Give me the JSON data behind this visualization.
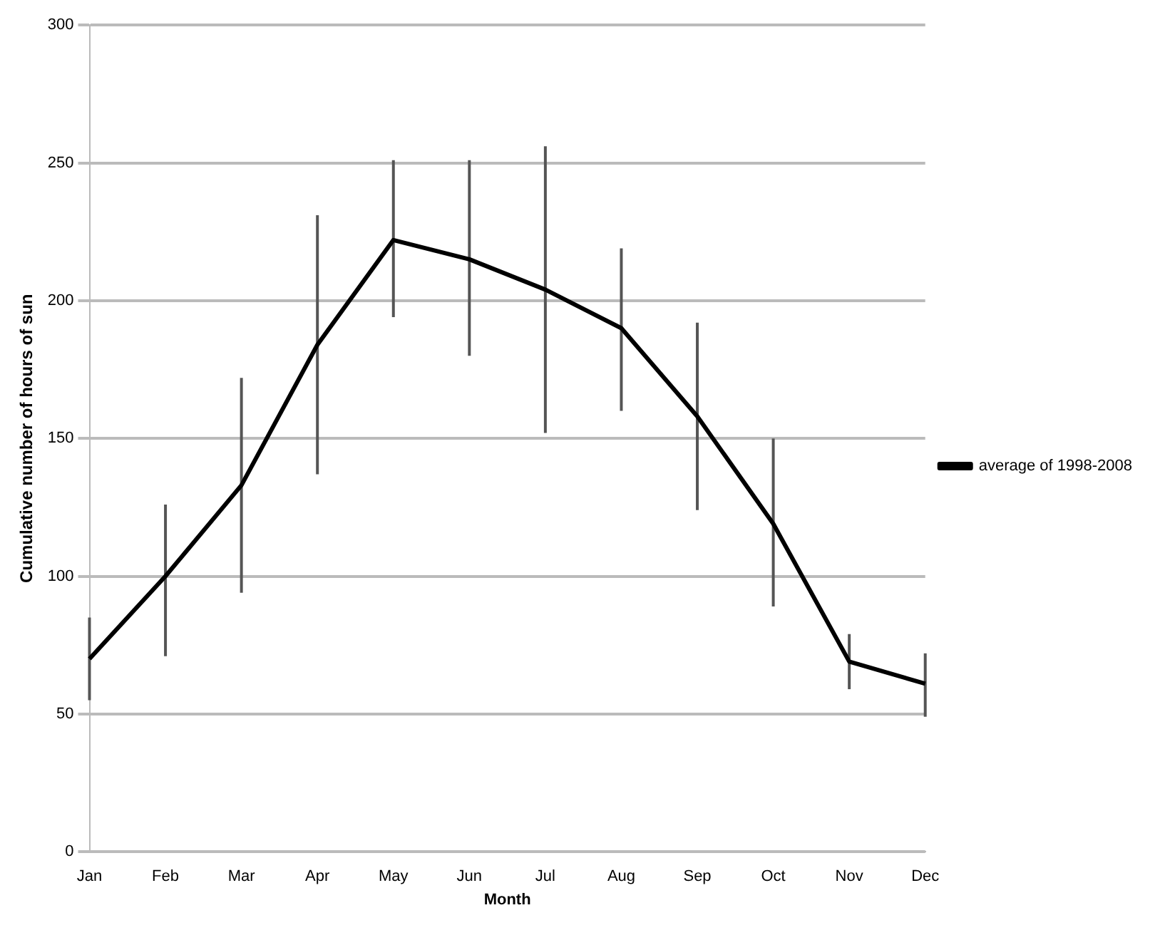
{
  "chart_data": {
    "type": "line",
    "xlabel": "Month",
    "ylabel": "Cumulative number of hours of sun",
    "categories": [
      "Jan",
      "Feb",
      "Mar",
      "Apr",
      "May",
      "Jun",
      "Jul",
      "Aug",
      "Sep",
      "Oct",
      "Nov",
      "Dec"
    ],
    "series": [
      {
        "name": "average of 1998-2008",
        "color": "#000000",
        "values": [
          70,
          100,
          133,
          184,
          222,
          215,
          204,
          190,
          158,
          119,
          69,
          61
        ],
        "errors": [
          [
            55,
            85
          ],
          [
            71,
            126
          ],
          [
            94,
            172
          ],
          [
            137,
            231
          ],
          [
            194,
            251
          ],
          [
            180,
            251
          ],
          [
            152,
            256
          ],
          [
            160,
            219
          ],
          [
            124,
            192
          ],
          [
            89,
            150
          ],
          [
            59,
            79
          ],
          [
            49,
            72
          ]
        ]
      }
    ],
    "ylim": [
      0,
      300
    ],
    "yticks": [
      0,
      50,
      100,
      150,
      200,
      250,
      300
    ],
    "grid": "y",
    "legend": "right",
    "marker": "none",
    "line_style": "solid"
  }
}
